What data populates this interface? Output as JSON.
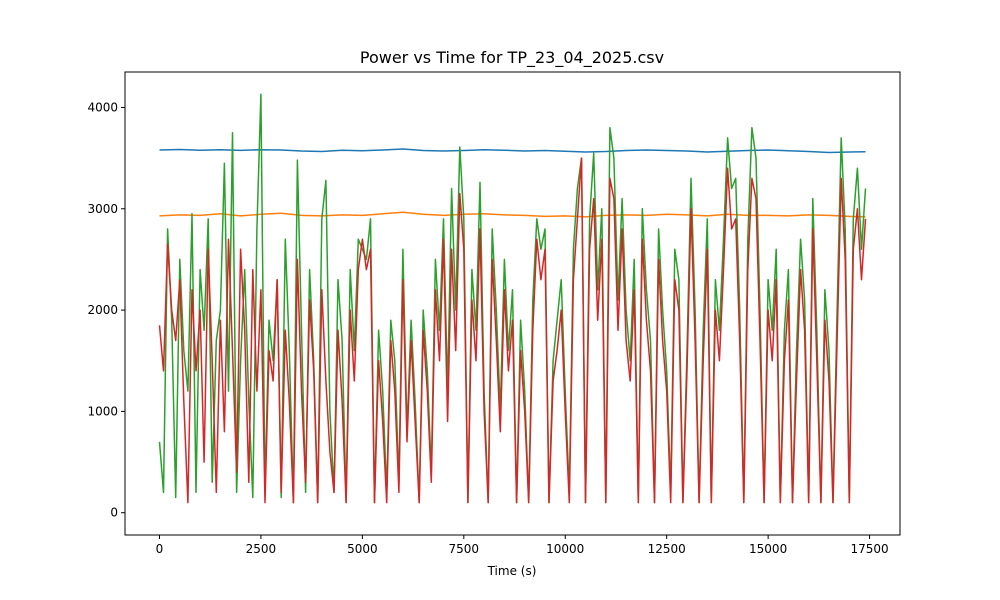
{
  "chart_data": {
    "type": "line",
    "title": "Power vs Time for TP_23_04_2025.csv",
    "xlabel": "Time (s)",
    "ylabel": "",
    "xlim": [
      -850,
      18250
    ],
    "ylim": [
      -220,
      4350
    ],
    "xticks": [
      0,
      2500,
      5000,
      7500,
      10000,
      12500,
      15000,
      17500
    ],
    "yticks": [
      0,
      1000,
      2000,
      3000,
      4000
    ],
    "grid": false,
    "series": [
      {
        "color": "#1f77b4",
        "x": [
          0,
          500,
          1000,
          1500,
          2000,
          2500,
          3000,
          3500,
          4000,
          4500,
          5000,
          5500,
          6000,
          6500,
          7000,
          7500,
          8000,
          8500,
          9000,
          9500,
          10000,
          10500,
          11000,
          11500,
          12000,
          12500,
          13000,
          13500,
          14000,
          14500,
          15000,
          15500,
          16000,
          16500,
          17000,
          17400
        ],
        "values": [
          3580,
          3585,
          3578,
          3582,
          3576,
          3583,
          3580,
          3570,
          3565,
          3578,
          3572,
          3580,
          3590,
          3575,
          3570,
          3575,
          3582,
          3578,
          3570,
          3575,
          3568,
          3560,
          3565,
          3575,
          3580,
          3575,
          3570,
          3560,
          3568,
          3575,
          3580,
          3572,
          3565,
          3555,
          3560,
          3562
        ]
      },
      {
        "color": "#ff7f0e",
        "x": [
          0,
          500,
          1000,
          1500,
          2000,
          2500,
          3000,
          3500,
          4000,
          4500,
          5000,
          5500,
          6000,
          6500,
          7000,
          7500,
          8000,
          8500,
          9000,
          9500,
          10000,
          10500,
          11000,
          11500,
          12000,
          12500,
          13000,
          13500,
          14000,
          14500,
          15000,
          15500,
          16000,
          16500,
          17000,
          17400
        ],
        "values": [
          2930,
          2940,
          2935,
          2950,
          2930,
          2945,
          2955,
          2935,
          2930,
          2940,
          2935,
          2950,
          2965,
          2945,
          2935,
          2945,
          2950,
          2940,
          2935,
          2925,
          2930,
          2920,
          2935,
          2940,
          2935,
          2945,
          2940,
          2930,
          2945,
          2935,
          2935,
          2930,
          2940,
          2935,
          2925,
          2920
        ]
      },
      {
        "color": "#2ca02c",
        "x": [
          0,
          100,
          200,
          300,
          400,
          500,
          600,
          700,
          800,
          900,
          1000,
          1100,
          1200,
          1300,
          1400,
          1500,
          1600,
          1700,
          1800,
          1900,
          2000,
          2100,
          2200,
          2300,
          2400,
          2500,
          2600,
          2700,
          2800,
          2900,
          3000,
          3100,
          3200,
          3300,
          3400,
          3500,
          3600,
          3700,
          3800,
          3900,
          4000,
          4100,
          4200,
          4300,
          4400,
          4500,
          4600,
          4700,
          4800,
          4900,
          5000,
          5100,
          5200,
          5300,
          5400,
          5500,
          5600,
          5700,
          5800,
          5900,
          6000,
          6100,
          6200,
          6300,
          6400,
          6500,
          6600,
          6700,
          6800,
          6900,
          7000,
          7100,
          7200,
          7300,
          7400,
          7500,
          7600,
          7700,
          7800,
          7900,
          8000,
          8100,
          8200,
          8300,
          8400,
          8500,
          8600,
          8700,
          8800,
          8900,
          9000,
          9100,
          9200,
          9300,
          9400,
          9500,
          9600,
          9700,
          9800,
          9900,
          10000,
          10100,
          10200,
          10300,
          10400,
          10500,
          10600,
          10700,
          10800,
          10900,
          11000,
          11100,
          11200,
          11300,
          11400,
          11500,
          11600,
          11700,
          11800,
          11900,
          12000,
          12100,
          12200,
          12300,
          12400,
          12500,
          12600,
          12700,
          12800,
          12900,
          13000,
          13100,
          13200,
          13300,
          13400,
          13500,
          13600,
          13700,
          13800,
          13900,
          14000,
          14100,
          14200,
          14300,
          14400,
          14500,
          14600,
          14700,
          14800,
          14900,
          15000,
          15100,
          15200,
          15300,
          15400,
          15500,
          15600,
          15700,
          15800,
          15900,
          16000,
          16100,
          16200,
          16300,
          16400,
          16500,
          16600,
          16700,
          16800,
          16900,
          17000,
          17100,
          17200,
          17300,
          17400
        ],
        "values": [
          700,
          200,
          2800,
          1900,
          150,
          2500,
          1600,
          1200,
          2950,
          200,
          2400,
          1800,
          2900,
          300,
          1700,
          2000,
          3450,
          1200,
          3750,
          200,
          1500,
          2400,
          1100,
          150,
          2800,
          4130,
          200,
          1900,
          1500,
          2300,
          150,
          2700,
          1600,
          100,
          3480,
          1800,
          200,
          2400,
          1500,
          100,
          2900,
          3280,
          1000,
          200,
          2300,
          1700,
          100,
          2400,
          1600,
          2700,
          2600,
          2500,
          2900,
          100,
          1800,
          1200,
          200,
          1900,
          1500,
          300,
          2600,
          800,
          1900,
          1100,
          100,
          2000,
          1400,
          400,
          2500,
          1800,
          2900,
          1200,
          3200,
          2000,
          3610,
          2900,
          100,
          2400,
          1800,
          3260,
          1200,
          100,
          2800,
          2000,
          1000,
          2500,
          1600,
          2200,
          100,
          1900,
          1200,
          100,
          2100,
          2900,
          2600,
          2800,
          100,
          1500,
          1900,
          2300,
          1200,
          200,
          2600,
          3200,
          3500,
          100,
          2900,
          3550,
          2200,
          3000,
          100,
          3800,
          3500,
          2100,
          3100,
          2000,
          1500,
          2500,
          100,
          3000,
          2200,
          1700,
          100,
          2800,
          2000,
          1400,
          200,
          2600,
          2300,
          100,
          1600,
          3300,
          2000,
          100,
          1800,
          2900,
          100,
          2300,
          1800,
          2700,
          3700,
          3200,
          3300,
          2000,
          100,
          2700,
          3800,
          3500,
          2000,
          100,
          2300,
          1800,
          2600,
          100,
          1800,
          2400,
          100,
          1600,
          2700,
          2100,
          100,
          3100,
          1800,
          100,
          2200,
          1600,
          100,
          2000,
          3700,
          2800,
          100,
          2900,
          3400,
          2600,
          3200
        ]
      },
      {
        "color": "#d62728",
        "x": [
          0,
          100,
          200,
          300,
          400,
          500,
          600,
          700,
          800,
          900,
          1000,
          1100,
          1200,
          1300,
          1400,
          1500,
          1600,
          1700,
          1800,
          1900,
          2000,
          2100,
          2200,
          2300,
          2400,
          2500,
          2600,
          2700,
          2800,
          2900,
          3000,
          3100,
          3200,
          3300,
          3400,
          3500,
          3600,
          3700,
          3800,
          3900,
          4000,
          4100,
          4200,
          4300,
          4400,
          4500,
          4600,
          4700,
          4800,
          4900,
          5000,
          5100,
          5200,
          5300,
          5400,
          5500,
          5600,
          5700,
          5800,
          5900,
          6000,
          6100,
          6200,
          6300,
          6400,
          6500,
          6600,
          6700,
          6800,
          6900,
          7000,
          7100,
          7200,
          7300,
          7400,
          7500,
          7600,
          7700,
          7800,
          7900,
          8000,
          8100,
          8200,
          8300,
          8400,
          8500,
          8600,
          8700,
          8800,
          8900,
          9000,
          9100,
          9200,
          9300,
          9400,
          9500,
          9600,
          9700,
          9800,
          9900,
          10000,
          10100,
          10200,
          10300,
          10400,
          10500,
          10600,
          10700,
          10800,
          10900,
          11000,
          11100,
          11200,
          11300,
          11400,
          11500,
          11600,
          11700,
          11800,
          11900,
          12000,
          12100,
          12200,
          12300,
          12400,
          12500,
          12600,
          12700,
          12800,
          12900,
          13000,
          13100,
          13200,
          13300,
          13400,
          13500,
          13600,
          13700,
          13800,
          13900,
          14000,
          14100,
          14200,
          14300,
          14400,
          14500,
          14600,
          14700,
          14800,
          14900,
          15000,
          15100,
          15200,
          15300,
          15400,
          15500,
          15600,
          15700,
          15800,
          15900,
          16000,
          16100,
          16200,
          16300,
          16400,
          16500,
          16600,
          16700,
          16800,
          16900,
          17000,
          17100,
          17200,
          17300,
          17400
        ],
        "values": [
          1850,
          1400,
          2650,
          2000,
          1700,
          2300,
          1100,
          100,
          2200,
          1400,
          2000,
          500,
          2600,
          1500,
          200,
          1900,
          800,
          2700,
          1600,
          400,
          2600,
          1800,
          300,
          2400,
          1200,
          2200,
          100,
          1600,
          1300,
          2300,
          200,
          1800,
          1100,
          100,
          2500,
          1200,
          300,
          2100,
          1400,
          100,
          2200,
          1300,
          600,
          200,
          1800,
          1100,
          100,
          2000,
          1300,
          2400,
          2700,
          2400,
          2600,
          100,
          1500,
          900,
          100,
          1700,
          1200,
          200,
          2300,
          700,
          1700,
          900,
          100,
          1800,
          1200,
          300,
          2200,
          1500,
          2700,
          900,
          2600,
          1600,
          3150,
          2600,
          100,
          2100,
          1500,
          2800,
          1000,
          100,
          2500,
          1700,
          800,
          2200,
          1400,
          1900,
          100,
          1600,
          1000,
          100,
          1800,
          2700,
          2300,
          2600,
          100,
          1300,
          1600,
          2000,
          1000,
          100,
          2300,
          2900,
          3500,
          100,
          2600,
          3100,
          1900,
          2700,
          100,
          3300,
          3100,
          1800,
          2800,
          1700,
          1300,
          2200,
          100,
          2700,
          1900,
          1400,
          100,
          2500,
          1700,
          1200,
          100,
          2300,
          2000,
          100,
          1400,
          3000,
          1700,
          100,
          1500,
          2600,
          100,
          2000,
          1500,
          2400,
          3400,
          2800,
          2900,
          1700,
          100,
          2400,
          3300,
          3100,
          1700,
          100,
          2000,
          1500,
          2300,
          100,
          1500,
          2100,
          100,
          1300,
          2400,
          1800,
          100,
          2800,
          1500,
          100,
          1900,
          1300,
          100,
          1700,
          3300,
          2500,
          100,
          2600,
          3000,
          2300,
          2900
        ]
      }
    ]
  }
}
